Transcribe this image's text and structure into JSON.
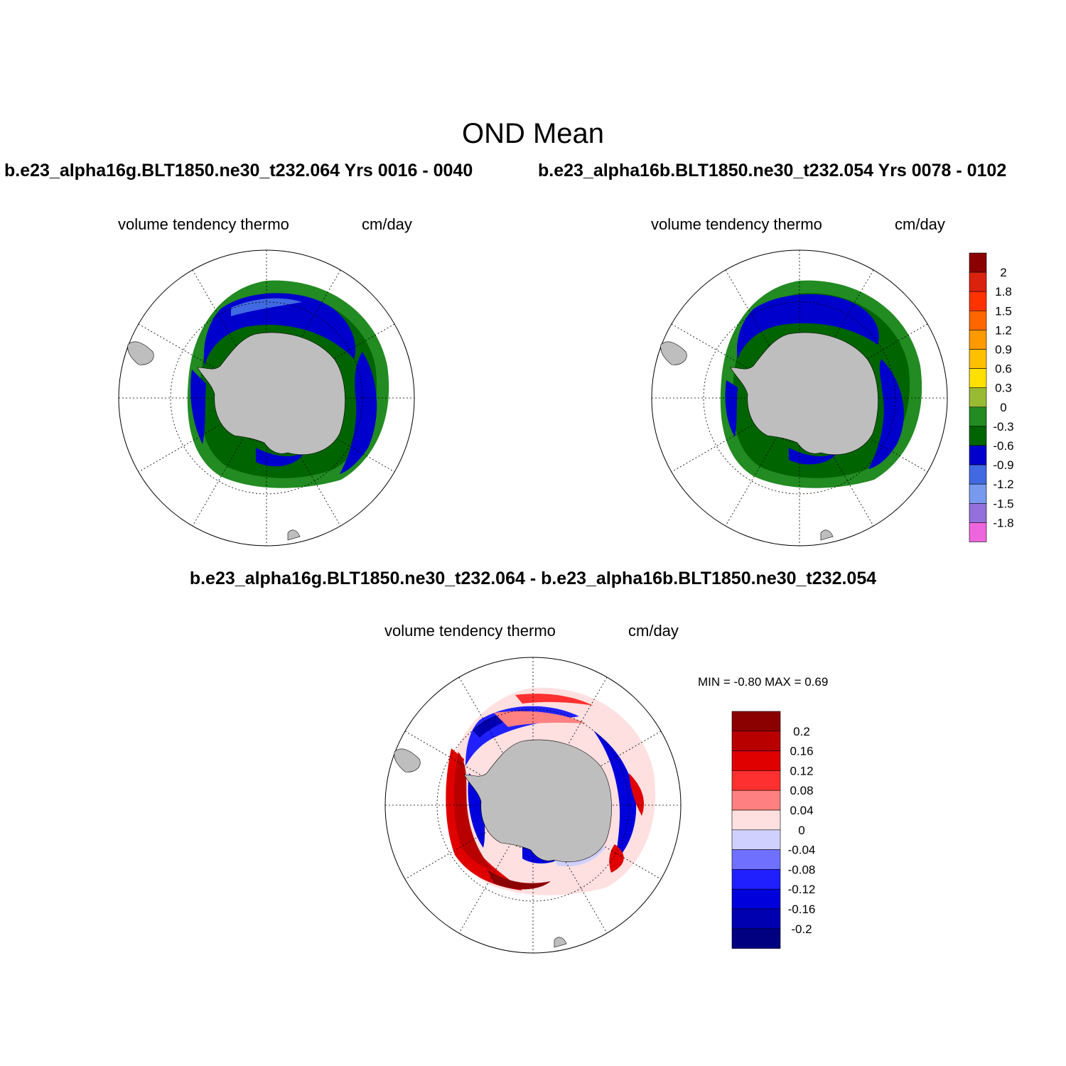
{
  "figure": {
    "title": "OND Mean",
    "case_a_title": "b.e23_alpha16g.BLT1850.ne30_t232.064  Yrs 0016 - 0040",
    "case_b_title": "b.e23_alpha16b.BLT1850.ne30_t232.054  Yrs 0078 - 0102",
    "diff_title": "b.e23_alpha16g.BLT1850.ne30_t232.064 - b.e23_alpha16b.BLT1850.ne30_t232.054"
  },
  "panels": [
    {
      "id": "case-a",
      "variable": "volume tendency thermo",
      "units": "cm/day"
    },
    {
      "id": "case-b",
      "variable": "volume tendency thermo",
      "units": "cm/day"
    },
    {
      "id": "diff",
      "variable": "volume tendency thermo",
      "units": "cm/day",
      "minmax": "MIN =  -0.80 MAX =   0.69"
    }
  ],
  "colorbar_main": {
    "labels": [
      "2",
      "1.8",
      "1.5",
      "1.2",
      "0.9",
      "0.6",
      "0.3",
      "0",
      "-0.3",
      "-0.6",
      "-0.9",
      "-1.2",
      "-1.5",
      "-1.8"
    ],
    "colors": [
      "#8b0000",
      "#d9230f",
      "#ff3300",
      "#ff6600",
      "#ff9900",
      "#ffc000",
      "#ffe000",
      "#99bb33",
      "#228b22",
      "#006400",
      "#0000cc",
      "#4169e1",
      "#7799ee",
      "#9370db",
      "#ee66dd"
    ]
  },
  "colorbar_diff": {
    "labels": [
      "0.2",
      "0.16",
      "0.12",
      "0.08",
      "0.04",
      "0",
      "-0.04",
      "-0.08",
      "-0.12",
      "-0.16",
      "-0.2"
    ],
    "colors": [
      "#8b0000",
      "#b80000",
      "#e00000",
      "#ff3030",
      "#ff8080",
      "#ffe0e0",
      "#d0d0ff",
      "#7070ff",
      "#2020ff",
      "#0000dd",
      "#0000b0",
      "#000080"
    ]
  },
  "map_colors": {
    "land": "#bebebe",
    "ocean": "#ffffff"
  }
}
